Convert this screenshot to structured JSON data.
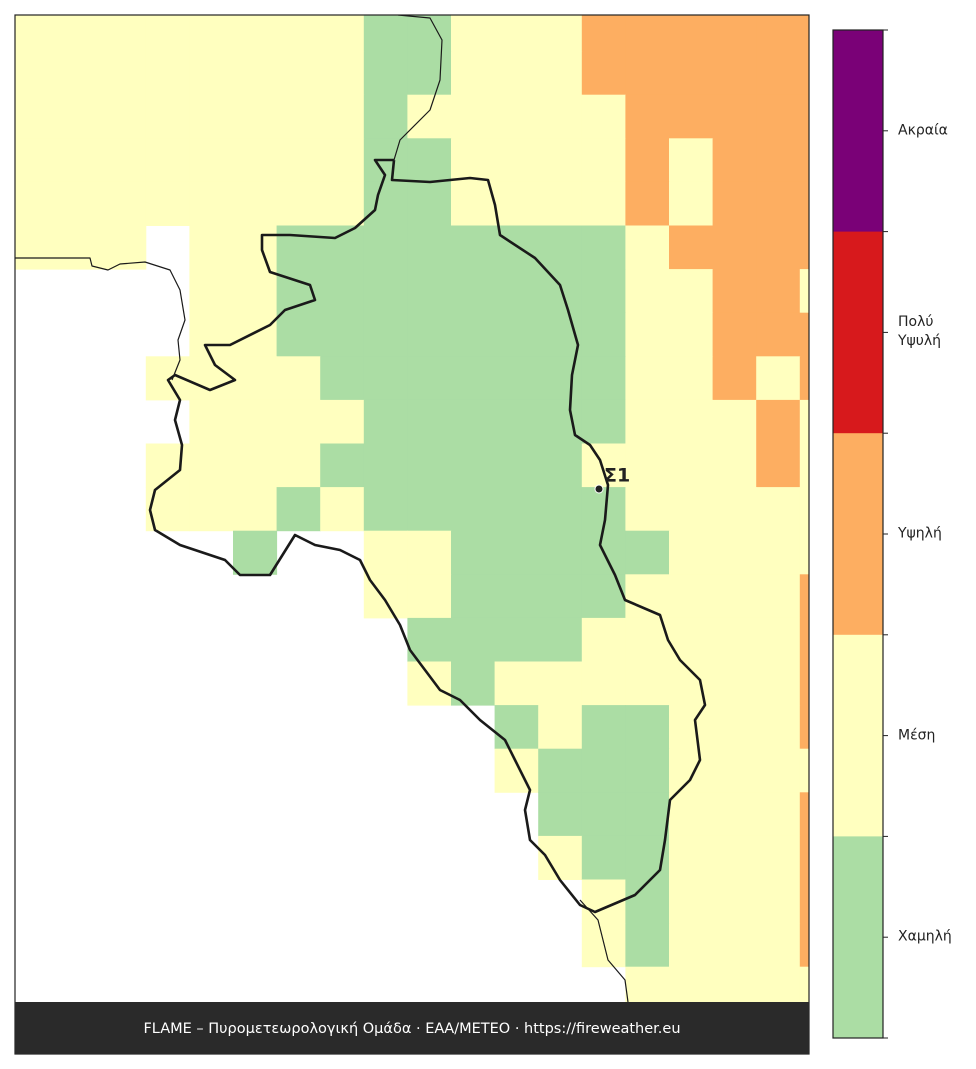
{
  "map": {
    "station_label": "Σ1",
    "footer": "FLAME – Πυρομετεωρολογική Ομάδα · ΕΑΑ/METEO · https://fireweather.eu"
  },
  "legend": {
    "labels": [
      "Ακραία",
      "Πολύ\nΥψυλή",
      "Υψηλή",
      "Μέση",
      "Χαμηλή"
    ],
    "colors": [
      "#7a0177",
      "#d7191c",
      "#fdae61",
      "#ffffbf",
      "#abdda4"
    ]
  }
}
